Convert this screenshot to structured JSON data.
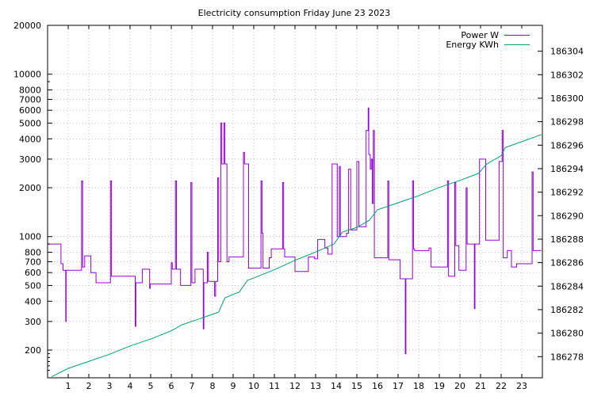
{
  "chart_data": {
    "type": "line",
    "title": "Electricity consumption Friday June 23 2023",
    "legend_position": "top-right",
    "grid": true,
    "colors": {
      "power": "#9400d3",
      "energy": "#009e73",
      "grid": "#a0a0a0",
      "axis": "#000000"
    },
    "x_axis": {
      "min": 0,
      "max": 24,
      "ticks": [
        1,
        2,
        3,
        4,
        5,
        6,
        7,
        8,
        9,
        10,
        11,
        12,
        13,
        14,
        15,
        16,
        17,
        18,
        19,
        20,
        21,
        22,
        23
      ]
    },
    "y_left": {
      "scale": "log",
      "min": 135,
      "max": 20000,
      "ticks": [
        200,
        300,
        400,
        500,
        600,
        700,
        800,
        1000,
        2000,
        3000,
        4000,
        5000,
        6000,
        7000,
        8000,
        10000,
        20000
      ]
    },
    "y_right": {
      "min": 186276.2,
      "max": 186306.2,
      "ticks": [
        186278,
        186280,
        186282,
        186284,
        186286,
        186288,
        186290,
        186292,
        186294,
        186296,
        186298,
        186300,
        186302,
        186304
      ]
    },
    "series": [
      {
        "name": "Power W",
        "axis": "left",
        "points": [
          [
            0,
            900
          ],
          [
            0.65,
            900
          ],
          [
            0.65,
            680
          ],
          [
            0.75,
            680
          ],
          [
            0.75,
            620
          ],
          [
            0.88,
            620
          ],
          [
            0.88,
            300
          ],
          [
            0.9,
            300
          ],
          [
            0.9,
            620
          ],
          [
            1.65,
            620
          ],
          [
            1.65,
            2200
          ],
          [
            1.7,
            2200
          ],
          [
            1.7,
            650
          ],
          [
            1.8,
            650
          ],
          [
            1.8,
            760
          ],
          [
            2.1,
            760
          ],
          [
            2.1,
            600
          ],
          [
            2.35,
            600
          ],
          [
            2.35,
            520
          ],
          [
            3.05,
            520
          ],
          [
            3.05,
            2200
          ],
          [
            3.1,
            2200
          ],
          [
            3.1,
            570
          ],
          [
            4.25,
            570
          ],
          [
            4.25,
            280
          ],
          [
            4.28,
            280
          ],
          [
            4.28,
            520
          ],
          [
            4.6,
            520
          ],
          [
            4.6,
            630
          ],
          [
            4.95,
            630
          ],
          [
            4.95,
            480
          ],
          [
            4.98,
            480
          ],
          [
            4.98,
            510
          ],
          [
            6.0,
            510
          ],
          [
            6.0,
            690
          ],
          [
            6.05,
            690
          ],
          [
            6.05,
            630
          ],
          [
            6.2,
            630
          ],
          [
            6.2,
            2200
          ],
          [
            6.25,
            2200
          ],
          [
            6.25,
            630
          ],
          [
            6.45,
            630
          ],
          [
            6.45,
            500
          ],
          [
            6.95,
            500
          ],
          [
            6.95,
            2150
          ],
          [
            7.0,
            2150
          ],
          [
            7.0,
            520
          ],
          [
            7.15,
            520
          ],
          [
            7.15,
            630
          ],
          [
            7.55,
            630
          ],
          [
            7.55,
            270
          ],
          [
            7.58,
            270
          ],
          [
            7.58,
            520
          ],
          [
            7.75,
            520
          ],
          [
            7.75,
            800
          ],
          [
            7.8,
            800
          ],
          [
            7.8,
            530
          ],
          [
            8.1,
            530
          ],
          [
            8.1,
            430
          ],
          [
            8.15,
            430
          ],
          [
            8.15,
            530
          ],
          [
            8.25,
            530
          ],
          [
            8.25,
            2300
          ],
          [
            8.3,
            2300
          ],
          [
            8.3,
            700
          ],
          [
            8.4,
            700
          ],
          [
            8.4,
            5000
          ],
          [
            8.45,
            5000
          ],
          [
            8.45,
            2800
          ],
          [
            8.55,
            2800
          ],
          [
            8.55,
            5000
          ],
          [
            8.6,
            5000
          ],
          [
            8.6,
            2800
          ],
          [
            8.7,
            2800
          ],
          [
            8.7,
            700
          ],
          [
            8.8,
            700
          ],
          [
            8.8,
            750
          ],
          [
            9.5,
            750
          ],
          [
            9.5,
            3300
          ],
          [
            9.55,
            3300
          ],
          [
            9.55,
            2800
          ],
          [
            9.75,
            2800
          ],
          [
            9.75,
            640
          ],
          [
            10.35,
            640
          ],
          [
            10.35,
            2200
          ],
          [
            10.4,
            2200
          ],
          [
            10.4,
            1050
          ],
          [
            10.45,
            1050
          ],
          [
            10.45,
            640
          ],
          [
            10.75,
            640
          ],
          [
            10.75,
            740
          ],
          [
            10.85,
            740
          ],
          [
            10.85,
            840
          ],
          [
            11.4,
            840
          ],
          [
            11.4,
            2150
          ],
          [
            11.45,
            2150
          ],
          [
            11.45,
            840
          ],
          [
            11.5,
            840
          ],
          [
            11.5,
            750
          ],
          [
            12.0,
            750
          ],
          [
            12.0,
            610
          ],
          [
            12.65,
            610
          ],
          [
            12.65,
            750
          ],
          [
            12.95,
            750
          ],
          [
            12.95,
            730
          ],
          [
            13.1,
            730
          ],
          [
            13.1,
            960
          ],
          [
            13.45,
            960
          ],
          [
            13.45,
            850
          ],
          [
            13.6,
            850
          ],
          [
            13.6,
            780
          ],
          [
            13.8,
            780
          ],
          [
            13.8,
            2800
          ],
          [
            14.05,
            2800
          ],
          [
            14.05,
            1000
          ],
          [
            14.15,
            1000
          ],
          [
            14.15,
            2700
          ],
          [
            14.2,
            2700
          ],
          [
            14.2,
            1000
          ],
          [
            14.5,
            1000
          ],
          [
            14.5,
            1050
          ],
          [
            14.6,
            1050
          ],
          [
            14.6,
            2600
          ],
          [
            14.7,
            2600
          ],
          [
            14.7,
            1100
          ],
          [
            15.0,
            1100
          ],
          [
            15.0,
            2900
          ],
          [
            15.1,
            2900
          ],
          [
            15.1,
            1150
          ],
          [
            15.45,
            1150
          ],
          [
            15.45,
            4500
          ],
          [
            15.55,
            4500
          ],
          [
            15.55,
            6200
          ],
          [
            15.58,
            6200
          ],
          [
            15.58,
            3200
          ],
          [
            15.65,
            3200
          ],
          [
            15.65,
            2600
          ],
          [
            15.7,
            2600
          ],
          [
            15.7,
            3000
          ],
          [
            15.75,
            3000
          ],
          [
            15.75,
            1600
          ],
          [
            15.8,
            1600
          ],
          [
            15.8,
            4500
          ],
          [
            15.85,
            4500
          ],
          [
            15.85,
            740
          ],
          [
            16.5,
            740
          ],
          [
            16.5,
            2200
          ],
          [
            16.55,
            2200
          ],
          [
            16.55,
            720
          ],
          [
            17.1,
            720
          ],
          [
            17.1,
            550
          ],
          [
            17.35,
            550
          ],
          [
            17.35,
            190
          ],
          [
            17.38,
            190
          ],
          [
            17.38,
            550
          ],
          [
            17.7,
            550
          ],
          [
            17.7,
            2200
          ],
          [
            17.75,
            2200
          ],
          [
            17.75,
            840
          ],
          [
            17.8,
            840
          ],
          [
            17.8,
            820
          ],
          [
            18.5,
            820
          ],
          [
            18.5,
            850
          ],
          [
            18.6,
            850
          ],
          [
            18.6,
            650
          ],
          [
            19.4,
            650
          ],
          [
            19.4,
            2200
          ],
          [
            19.45,
            2200
          ],
          [
            19.45,
            570
          ],
          [
            19.75,
            570
          ],
          [
            19.75,
            2150
          ],
          [
            19.8,
            2150
          ],
          [
            19.8,
            880
          ],
          [
            19.95,
            880
          ],
          [
            19.95,
            620
          ],
          [
            20.3,
            620
          ],
          [
            20.3,
            2000
          ],
          [
            20.35,
            2000
          ],
          [
            20.35,
            900
          ],
          [
            20.7,
            900
          ],
          [
            20.7,
            360
          ],
          [
            20.73,
            360
          ],
          [
            20.73,
            900
          ],
          [
            20.95,
            900
          ],
          [
            20.95,
            3000
          ],
          [
            21.25,
            3000
          ],
          [
            21.25,
            950
          ],
          [
            21.9,
            950
          ],
          [
            21.9,
            2900
          ],
          [
            22.05,
            2900
          ],
          [
            22.05,
            4500
          ],
          [
            22.1,
            4500
          ],
          [
            22.1,
            740
          ],
          [
            22.3,
            740
          ],
          [
            22.3,
            820
          ],
          [
            22.5,
            820
          ],
          [
            22.5,
            650
          ],
          [
            22.75,
            650
          ],
          [
            22.75,
            680
          ],
          [
            23.5,
            680
          ],
          [
            23.5,
            2500
          ],
          [
            23.55,
            2500
          ],
          [
            23.55,
            820
          ],
          [
            23.95,
            820
          ]
        ]
      },
      {
        "name": "Energy KWh",
        "axis": "right",
        "points": [
          [
            0.2,
            186276.3
          ],
          [
            1.0,
            186277.0
          ],
          [
            2.0,
            186277.6
          ],
          [
            3.0,
            186278.2
          ],
          [
            4.0,
            186278.9
          ],
          [
            5.0,
            186279.5
          ],
          [
            6.0,
            186280.2
          ],
          [
            6.5,
            186280.7
          ],
          [
            7.0,
            186281.0
          ],
          [
            8.0,
            186281.6
          ],
          [
            8.3,
            186281.8
          ],
          [
            8.6,
            186283.0
          ],
          [
            9.0,
            186283.3
          ],
          [
            9.3,
            186283.5
          ],
          [
            9.7,
            186284.5
          ],
          [
            10.0,
            186284.7
          ],
          [
            11.0,
            186285.4
          ],
          [
            12.0,
            186286.2
          ],
          [
            13.0,
            186286.9
          ],
          [
            13.9,
            186287.6
          ],
          [
            14.3,
            186288.6
          ],
          [
            15.0,
            186289.0
          ],
          [
            15.6,
            186289.6
          ],
          [
            16.0,
            186290.5
          ],
          [
            17.0,
            186291.1
          ],
          [
            18.0,
            186291.7
          ],
          [
            19.0,
            186292.4
          ],
          [
            20.0,
            186293.0
          ],
          [
            20.9,
            186293.6
          ],
          [
            21.3,
            186294.4
          ],
          [
            22.0,
            186295.1
          ],
          [
            22.2,
            186295.8
          ],
          [
            23.0,
            186296.3
          ],
          [
            23.95,
            186296.9
          ]
        ]
      }
    ]
  }
}
